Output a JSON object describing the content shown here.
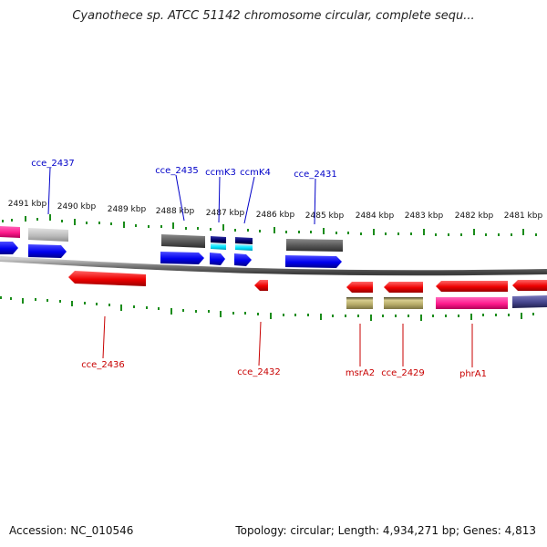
{
  "header": {
    "title": "Cyanothece sp. ATCC 51142 chromosome circular, complete sequ..."
  },
  "footer": {
    "accession": "Accession: NC_010546",
    "summary": "Topology: circular; Length: 4,934,271 bp; Genes: 4,813"
  },
  "ruler": {
    "labels": [
      "2491 kbp",
      "2490 kbp",
      "2489 kbp",
      "2488 kbp",
      "2487 kbp",
      "2486 kbp",
      "2485 kbp",
      "2484 kbp",
      "2483 kbp",
      "2482 kbp",
      "2481 kbp"
    ]
  },
  "genes_top": [
    "cce_2437",
    "cce_2435",
    "ccmK3",
    "ccmK4",
    "cce_2431"
  ],
  "genes_bottom": [
    "cce_2436",
    "cce_2432",
    "msrA2",
    "cce_2429",
    "phrA1"
  ],
  "colors": {
    "forward_strand": "#1a1aff",
    "reverse_strand": "#ff1a1a",
    "top_label": "#0000c8",
    "bottom_label": "#c80000",
    "tick": "#1a8c1a",
    "backbone": "#777777",
    "pink": "#ff3399",
    "dark_gray": "#5a5a5a",
    "light_gray": "#bdbdbd",
    "navy": "#000066",
    "cyan": "#00e5ff",
    "khaki": "#b8ad6a",
    "slate": "#4a4a8c"
  }
}
